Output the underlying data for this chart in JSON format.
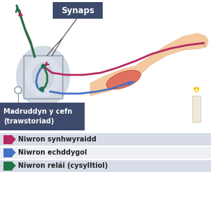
{
  "title": "Synaps",
  "title_bg": "#3d4a6b",
  "title_fg": "#ffffff",
  "spinal_label_line1": "Madruddyn y cefn",
  "spinal_label_line2": "(trawstoriad)",
  "spinal_bg": "#3d4a6b",
  "spinal_fg": "#ffffff",
  "legend_items": [
    {
      "label": "Niwron synhwyraidd",
      "color": "#b5295e"
    },
    {
      "label": "Niwron echddygol",
      "color": "#4472c4"
    },
    {
      "label": "Niwron relái (cysylltiol)",
      "color": "#217346"
    }
  ],
  "legend_bg": "#d8dce8",
  "legend_bg2": "#ffffff",
  "arm_color": "#f5c9a0",
  "arm_shadow": "#e8b888",
  "muscle_color": "#e07060",
  "candle_body": "#f0e8d8",
  "candle_flame_outer": "#f5c518",
  "candle_flame_inner": "#fff8a0",
  "bg_color": "#ffffff",
  "spinal_outer": "#c8d0da",
  "spinal_inner": "#dde3ec",
  "spinal_box_color": "#8899aa",
  "gray_line": "#888888"
}
